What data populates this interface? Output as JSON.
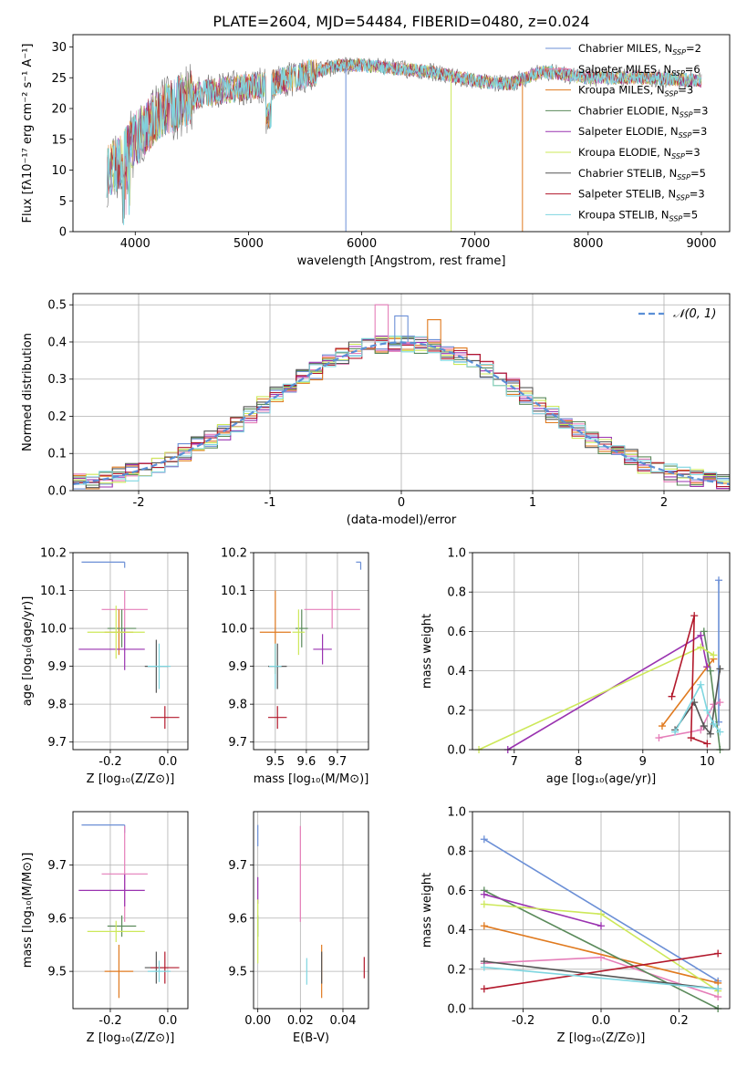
{
  "title": "PLATE=2604, MJD=54484, FIBERID=0480, z=0.024",
  "colors": {
    "Chabrier MILES": "#6b8fd6",
    "Salpeter MILES": "#e57eb9",
    "Kroupa MILES": "#e07a1f",
    "Chabrier ELODIE": "#5a8a5a",
    "Salpeter ELODIE": "#9a33b0",
    "Kroupa ELODIE": "#cde85a",
    "Chabrier STELIB": "#555555",
    "Salpeter STELIB": "#b2182b",
    "Kroupa STELIB": "#7fd6e0",
    "normal": "#5b8fd6"
  },
  "chart_data": [
    {
      "type": "line",
      "id": "spectrum",
      "xlabel": "wavelength [Angstrom, rest frame]",
      "ylabel": "Flux [fλ10⁻¹⁷ erg cm⁻² s⁻¹ A⁻¹]",
      "xlim": [
        3450,
        9250
      ],
      "ylim": [
        0,
        32
      ],
      "xticks": [
        4000,
        5000,
        6000,
        7000,
        8000,
        9000
      ],
      "yticks": [
        0,
        5,
        10,
        15,
        20,
        25,
        30
      ],
      "legend": [
        "Chabrier MILES, N_SSP=2",
        "Salpeter MILES, N_SSP=6",
        "Kroupa MILES, N_SSP=3",
        "Chabrier ELODIE, N_SSP=3",
        "Salpeter ELODIE, N_SSP=3",
        "Kroupa ELODIE, N_SSP=3",
        "Chabrier STELIB, N_SSP=5",
        "Salpeter STELIB, N_SSP=3",
        "Kroupa STELIB, N_SSP=5"
      ],
      "legend_position": "top-right",
      "continuum": [
        [
          3750,
          10
        ],
        [
          3850,
          11
        ],
        [
          3950,
          14
        ],
        [
          4050,
          16
        ],
        [
          4200,
          19
        ],
        [
          4400,
          21
        ],
        [
          4600,
          22.5
        ],
        [
          4800,
          23
        ],
        [
          5000,
          23.5
        ],
        [
          5200,
          24
        ],
        [
          5500,
          25.5
        ],
        [
          5800,
          27
        ],
        [
          6000,
          27
        ],
        [
          6300,
          26.5
        ],
        [
          6600,
          26
        ],
        [
          7000,
          24.5
        ],
        [
          7300,
          24
        ],
        [
          7600,
          26
        ],
        [
          8000,
          25
        ],
        [
          8500,
          25
        ],
        [
          9000,
          24.5
        ]
      ],
      "drop_lines": [
        {
          "series": "Chabrier MILES",
          "x": 5860
        },
        {
          "series": "Kroupa ELODIE",
          "x": 6790
        },
        {
          "series": "Kroupa MILES",
          "x": 7420
        }
      ],
      "grid": false
    },
    {
      "type": "histogram",
      "id": "residuals",
      "xlabel": "(data-model)/error",
      "ylabel": "Normed distribution",
      "xlim": [
        -2.5,
        2.5
      ],
      "ylim": [
        0,
        0.53
      ],
      "xticks": [
        -2,
        -1,
        0,
        1,
        2
      ],
      "yticks": [
        0.0,
        0.1,
        0.2,
        0.3,
        0.4,
        0.5
      ],
      "bin_width": 0.1,
      "legend": [
        "𝒩(0, 1)"
      ],
      "legend_position": "top-right",
      "grid": true,
      "peak_values": {
        "Chabrier MILES": 0.47,
        "Salpeter MILES": 0.5,
        "Kroupa MILES": 0.46
      }
    },
    {
      "type": "scatter",
      "id": "age-vs-Z",
      "xlabel": "Z [log₁₀(Z/Z⊙)]",
      "ylabel": "age  [log₁₀(age/yr)]",
      "xlim": [
        -0.33,
        0.07
      ],
      "ylim": [
        9.68,
        10.2
      ],
      "xticks": [
        -0.2,
        0.0
      ],
      "yticks": [
        9.7,
        9.8,
        9.9,
        10.0,
        10.1,
        10.2
      ],
      "grid": true,
      "points": [
        {
          "series": "Chabrier MILES",
          "x": -0.15,
          "y": 10.175,
          "xerr": [
            0.15,
            0.0
          ],
          "yerr": [
            0.015,
            0.0
          ]
        },
        {
          "series": "Salpeter MILES",
          "x": -0.15,
          "y": 10.05,
          "xerr": [
            0.08,
            0.08
          ],
          "yerr": [
            0.05,
            0.05
          ]
        },
        {
          "series": "Kroupa MILES",
          "x": -0.17,
          "y": 9.99,
          "xerr": [
            0.05,
            0.05
          ],
          "yerr": [
            0.06,
            0.06
          ]
        },
        {
          "series": "Chabrier ELODIE",
          "x": -0.16,
          "y": 10.0,
          "xerr": [
            0.05,
            0.05
          ],
          "yerr": [
            0.05,
            0.05
          ]
        },
        {
          "series": "Salpeter ELODIE",
          "x": -0.15,
          "y": 9.945,
          "xerr": [
            0.16,
            0.07
          ],
          "yerr": [
            0.055,
            0.055
          ]
        },
        {
          "series": "Kroupa ELODIE",
          "x": -0.18,
          "y": 9.99,
          "xerr": [
            0.1,
            0.1
          ],
          "yerr": [
            0.07,
            0.07
          ]
        },
        {
          "series": "Chabrier STELIB",
          "x": -0.04,
          "y": 9.9,
          "xerr": [
            0.04,
            0.04
          ],
          "yerr": [
            0.07,
            0.07
          ]
        },
        {
          "series": "Salpeter STELIB",
          "x": -0.01,
          "y": 9.765,
          "xerr": [
            0.05,
            0.05
          ],
          "yerr": [
            0.03,
            0.03
          ]
        },
        {
          "series": "Kroupa STELIB",
          "x": -0.03,
          "y": 9.9,
          "xerr": [
            0.04,
            0.04
          ],
          "yerr": [
            0.06,
            0.06
          ]
        }
      ]
    },
    {
      "type": "scatter",
      "id": "age-vs-mass",
      "xlabel": "mass [log₁₀(M/M⊙)]",
      "ylabel": "",
      "xlim": [
        9.43,
        9.8
      ],
      "ylim": [
        9.68,
        10.2
      ],
      "xticks": [
        9.5,
        9.6,
        9.7
      ],
      "yticks": [
        9.7,
        9.8,
        9.9,
        10.0,
        10.1,
        10.2
      ],
      "grid": true,
      "points": [
        {
          "series": "Chabrier MILES",
          "x": 9.775,
          "y": 10.175,
          "xerr": [
            0.015,
            0.0
          ],
          "yerr": [
            0.02,
            0.0
          ]
        },
        {
          "series": "Salpeter MILES",
          "x": 9.683,
          "y": 10.05,
          "xerr": [
            0.09,
            0.09
          ],
          "yerr": [
            0.05,
            0.05
          ]
        },
        {
          "series": "Kroupa MILES",
          "x": 9.5,
          "y": 9.99,
          "xerr": [
            0.05,
            0.05
          ],
          "yerr": [
            0.11,
            0.11
          ]
        },
        {
          "series": "Chabrier ELODIE",
          "x": 9.585,
          "y": 10.0,
          "xerr": [
            0.02,
            0.02
          ],
          "yerr": [
            0.05,
            0.05
          ]
        },
        {
          "series": "Salpeter ELODIE",
          "x": 9.652,
          "y": 9.945,
          "xerr": [
            0.03,
            0.03
          ],
          "yerr": [
            0.04,
            0.04
          ]
        },
        {
          "series": "Kroupa ELODIE",
          "x": 9.575,
          "y": 9.99,
          "xerr": [
            0.02,
            0.02
          ],
          "yerr": [
            0.06,
            0.06
          ]
        },
        {
          "series": "Chabrier STELIB",
          "x": 9.507,
          "y": 9.9,
          "xerr": [
            0.03,
            0.03
          ],
          "yerr": [
            0.06,
            0.06
          ]
        },
        {
          "series": "Salpeter STELIB",
          "x": 9.507,
          "y": 9.765,
          "xerr": [
            0.03,
            0.03
          ],
          "yerr": [
            0.03,
            0.03
          ]
        },
        {
          "series": "Kroupa STELIB",
          "x": 9.5,
          "y": 9.9,
          "xerr": [
            0.02,
            0.02
          ],
          "yerr": [
            0.06,
            0.06
          ]
        }
      ]
    },
    {
      "type": "line",
      "id": "weight-vs-age",
      "xlabel": "age  [log₁₀(age/yr)]",
      "ylabel": "mass weight",
      "xlim": [
        6.35,
        10.35
      ],
      "ylim": [
        0,
        1.0
      ],
      "xticks": [
        7,
        8,
        9,
        10
      ],
      "yticks": [
        0.0,
        0.2,
        0.4,
        0.6,
        0.8,
        1.0
      ],
      "grid": true,
      "series": [
        {
          "name": "Chabrier MILES",
          "points": [
            [
              10.18,
              0.14
            ],
            [
              10.18,
              0.86
            ]
          ]
        },
        {
          "name": "Salpeter MILES",
          "points": [
            [
              9.25,
              0.06
            ],
            [
              9.9,
              0.1
            ],
            [
              10.1,
              0.23
            ],
            [
              10.2,
              0.24
            ]
          ]
        },
        {
          "name": "Kroupa MILES",
          "points": [
            [
              9.3,
              0.12
            ],
            [
              10.0,
              0.42
            ],
            [
              10.1,
              0.46
            ]
          ]
        },
        {
          "name": "Chabrier ELODIE",
          "points": [
            [
              9.95,
              0.6
            ],
            [
              10.05,
              0.4
            ],
            [
              10.2,
              0.0
            ]
          ]
        },
        {
          "name": "Salpeter ELODIE",
          "points": [
            [
              6.9,
              0.0
            ],
            [
              9.9,
              0.58
            ],
            [
              10.0,
              0.42
            ]
          ]
        },
        {
          "name": "Kroupa ELODIE",
          "points": [
            [
              6.45,
              0.0
            ],
            [
              9.9,
              0.52
            ],
            [
              10.1,
              0.48
            ]
          ]
        },
        {
          "name": "Chabrier STELIB",
          "points": [
            [
              9.5,
              0.1
            ],
            [
              9.8,
              0.24
            ],
            [
              9.95,
              0.12
            ],
            [
              10.05,
              0.08
            ],
            [
              10.2,
              0.41
            ]
          ]
        },
        {
          "name": "Salpeter STELIB",
          "points": [
            [
              9.45,
              0.27
            ],
            [
              9.8,
              0.68
            ],
            [
              9.75,
              0.06
            ],
            [
              10.0,
              0.03
            ]
          ]
        },
        {
          "name": "Kroupa STELIB",
          "points": [
            [
              9.5,
              0.09
            ],
            [
              9.9,
              0.33
            ],
            [
              10.0,
              0.2
            ],
            [
              10.1,
              0.13
            ],
            [
              10.2,
              0.09
            ]
          ]
        }
      ]
    },
    {
      "type": "scatter",
      "id": "mass-vs-Z",
      "xlabel": "Z [log₁₀(Z/Z⊙)]",
      "ylabel": "mass [log₁₀(M/M⊙)]",
      "xlim": [
        -0.33,
        0.07
      ],
      "ylim": [
        9.43,
        9.8
      ],
      "xticks": [
        -0.2,
        0.0
      ],
      "yticks": [
        9.5,
        9.6,
        9.7
      ],
      "grid": true,
      "points": [
        {
          "series": "Chabrier MILES",
          "x": -0.15,
          "y": 9.775,
          "xerr": [
            0.15,
            0.0
          ],
          "yerr": [
            0.015,
            0.0
          ]
        },
        {
          "series": "Salpeter MILES",
          "x": -0.15,
          "y": 9.683,
          "xerr": [
            0.08,
            0.08
          ],
          "yerr": [
            0.09,
            0.09
          ]
        },
        {
          "series": "Kroupa MILES",
          "x": -0.17,
          "y": 9.5,
          "xerr": [
            0.05,
            0.05
          ],
          "yerr": [
            0.05,
            0.05
          ]
        },
        {
          "series": "Chabrier ELODIE",
          "x": -0.16,
          "y": 9.585,
          "xerr": [
            0.05,
            0.05
          ],
          "yerr": [
            0.02,
            0.02
          ]
        },
        {
          "series": "Salpeter ELODIE",
          "x": -0.15,
          "y": 9.652,
          "xerr": [
            0.16,
            0.07
          ],
          "yerr": [
            0.03,
            0.03
          ]
        },
        {
          "series": "Kroupa ELODIE",
          "x": -0.18,
          "y": 9.575,
          "xerr": [
            0.1,
            0.1
          ],
          "yerr": [
            0.02,
            0.02
          ]
        },
        {
          "series": "Chabrier STELIB",
          "x": -0.04,
          "y": 9.507,
          "xerr": [
            0.04,
            0.04
          ],
          "yerr": [
            0.03,
            0.03
          ]
        },
        {
          "series": "Salpeter STELIB",
          "x": -0.01,
          "y": 9.507,
          "xerr": [
            0.05,
            0.05
          ],
          "yerr": [
            0.03,
            0.03
          ]
        },
        {
          "series": "Kroupa STELIB",
          "x": -0.03,
          "y": 9.5,
          "xerr": [
            0.04,
            0.04
          ],
          "yerr": [
            0.02,
            0.02
          ]
        }
      ]
    },
    {
      "type": "scatter",
      "id": "mass-vs-ebv",
      "xlabel": "E(B-V)",
      "ylabel": "",
      "xlim": [
        -0.002,
        0.052
      ],
      "ylim": [
        9.43,
        9.8
      ],
      "xticks": [
        0.0,
        0.02,
        0.04
      ],
      "yticks": [
        9.5,
        9.6,
        9.7
      ],
      "grid": true,
      "points": [
        {
          "series": "Chabrier MILES",
          "x": 0.0,
          "y": 9.775,
          "yerr": [
            0.04,
            0.0
          ]
        },
        {
          "series": "Salpeter MILES",
          "x": 0.02,
          "y": 9.683,
          "yerr": [
            0.09,
            0.09
          ]
        },
        {
          "series": "Kroupa MILES",
          "x": 0.03,
          "y": 9.5,
          "yerr": [
            0.05,
            0.05
          ]
        },
        {
          "series": "Chabrier ELODIE",
          "x": 0.0,
          "y": 9.585,
          "yerr": [
            0.02,
            0.02
          ]
        },
        {
          "series": "Salpeter ELODIE",
          "x": 0.0,
          "y": 9.652,
          "yerr": [
            0.025,
            0.025
          ]
        },
        {
          "series": "Kroupa ELODIE",
          "x": 0.0,
          "y": 9.575,
          "yerr": [
            0.06,
            0.06
          ]
        },
        {
          "series": "Chabrier STELIB",
          "x": 0.03,
          "y": 9.507,
          "yerr": [
            0.03,
            0.03
          ]
        },
        {
          "series": "Salpeter STELIB",
          "x": 0.05,
          "y": 9.507,
          "yerr": [
            0.02,
            0.02
          ]
        },
        {
          "series": "Kroupa STELIB",
          "x": 0.023,
          "y": 9.5,
          "yerr": [
            0.025,
            0.025
          ]
        }
      ]
    },
    {
      "type": "line",
      "id": "weight-vs-Z",
      "xlabel": "Z [log₁₀(Z/Z⊙)]",
      "ylabel": "mass weight",
      "xlim": [
        -0.33,
        0.33
      ],
      "ylim": [
        0,
        1.0
      ],
      "xticks": [
        -0.2,
        0.0,
        0.2
      ],
      "yticks": [
        0.0,
        0.2,
        0.4,
        0.6,
        0.8,
        1.0
      ],
      "grid": true,
      "series": [
        {
          "name": "Chabrier MILES",
          "points": [
            [
              -0.3,
              0.86
            ],
            [
              0.3,
              0.14
            ]
          ]
        },
        {
          "name": "Salpeter MILES",
          "points": [
            [
              -0.3,
              0.23
            ],
            [
              0.0,
              0.26
            ],
            [
              0.3,
              0.06
            ]
          ]
        },
        {
          "name": "Kroupa MILES",
          "points": [
            [
              -0.3,
              0.42
            ],
            [
              0.3,
              0.13
            ]
          ]
        },
        {
          "name": "Chabrier ELODIE",
          "points": [
            [
              -0.3,
              0.6
            ],
            [
              0.3,
              0.0
            ]
          ]
        },
        {
          "name": "Salpeter ELODIE",
          "points": [
            [
              -0.3,
              0.58
            ],
            [
              0.0,
              0.42
            ]
          ]
        },
        {
          "name": "Kroupa ELODIE",
          "points": [
            [
              -0.3,
              0.53
            ],
            [
              0.0,
              0.48
            ],
            [
              0.3,
              0.09
            ]
          ]
        },
        {
          "name": "Chabrier STELIB",
          "points": [
            [
              -0.3,
              0.24
            ],
            [
              0.3,
              0.1
            ]
          ]
        },
        {
          "name": "Salpeter STELIB",
          "points": [
            [
              -0.3,
              0.1
            ],
            [
              0.3,
              0.28
            ]
          ]
        },
        {
          "name": "Kroupa STELIB",
          "points": [
            [
              -0.3,
              0.21
            ],
            [
              0.3,
              0.1
            ]
          ]
        }
      ]
    }
  ]
}
